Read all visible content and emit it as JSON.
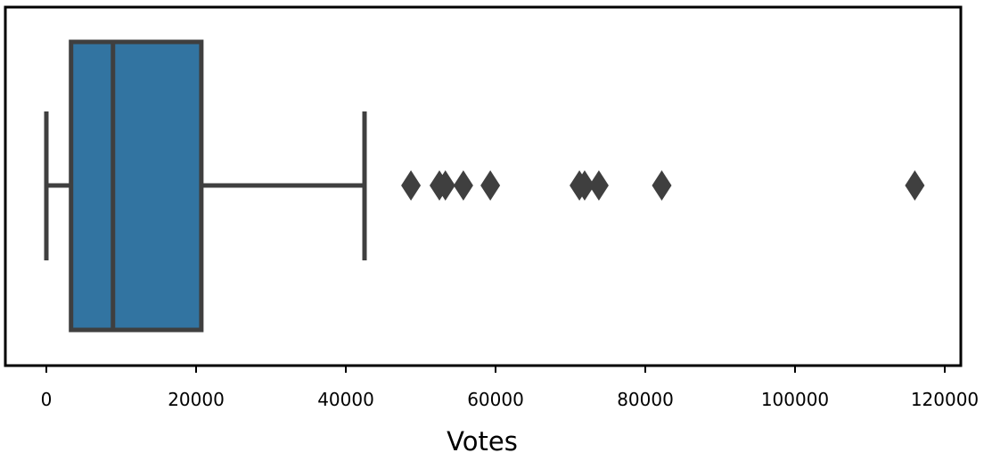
{
  "chart_data": {
    "type": "box",
    "orientation": "horizontal",
    "title": "",
    "xlabel": "Votes",
    "ylabel": "",
    "xlim": [
      -5500,
      122000
    ],
    "xticks": [
      0,
      20000,
      40000,
      60000,
      80000,
      100000,
      120000
    ],
    "xtick_labels": [
      "0",
      "20000",
      "40000",
      "60000",
      "80000",
      "100000",
      "120000"
    ],
    "grid": false,
    "box": {
      "whisker_low": 0,
      "q1": 3300,
      "median": 8900,
      "q3": 20700,
      "whisker_high": 42500
    },
    "outliers": [
      48700,
      52500,
      53300,
      55700,
      59300,
      71200,
      71900,
      73800,
      82200,
      116000
    ],
    "colors": {
      "box_fill": "#3274a1",
      "line": "#3f3f3f",
      "axes": "#000000"
    }
  }
}
